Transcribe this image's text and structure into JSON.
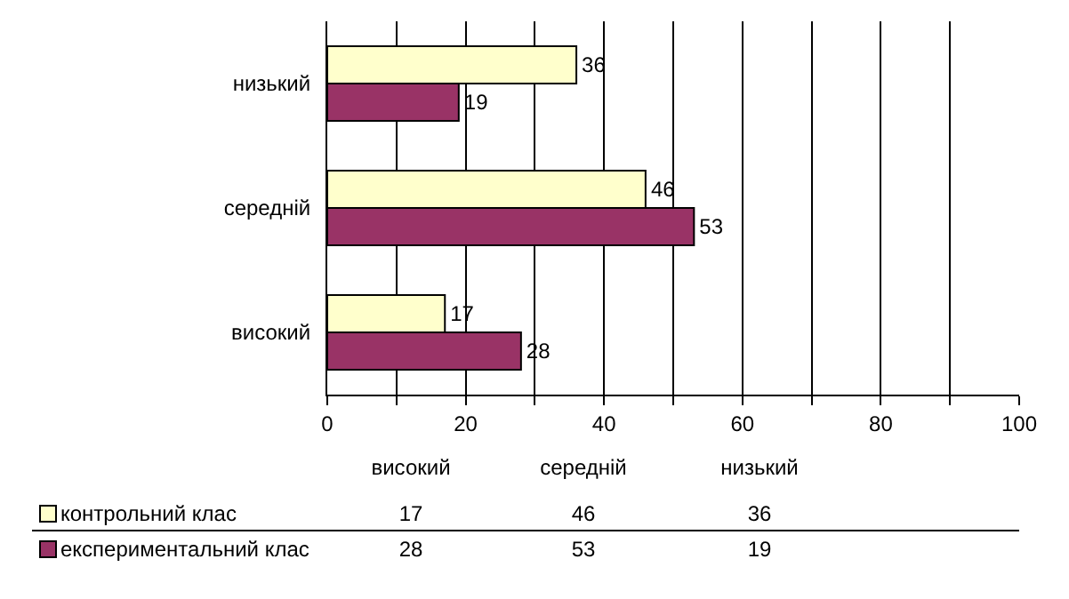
{
  "chart_data": [
    {
      "type": "bar",
      "orientation": "horizontal",
      "categories": [
        "низький",
        "середній",
        "високий"
      ],
      "series": [
        {
          "color": "#ffffcc",
          "values": [
            36,
            46,
            17
          ]
        },
        {
          "color": "#993366",
          "values": [
            19,
            53,
            28
          ]
        }
      ],
      "xlim": [
        0,
        100
      ],
      "xticks": [
        0,
        {
          "value": 10,
          "label": null
        },
        20,
        {
          "value": 30,
          "label": null
        },
        40,
        {
          "value": 50,
          "label": null
        },
        60,
        {
          "value": 70,
          "label": null
        },
        80,
        {
          "value": 90,
          "label": null
        },
        100
      ],
      "grid": "x",
      "data_labels": true
    },
    {
      "type": "other",
      "categories": [
        "високий",
        "середній",
        "низький"
      ],
      "series": [
        {
          "name": "контрольний клас",
          "color": "#ffffcc",
          "values": [
            17,
            46,
            36
          ]
        },
        {
          "name": "експериментальний клас",
          "color": "#993366",
          "values": [
            28,
            53,
            19
          ]
        }
      ],
      "data_labels": true,
      "legend": "left"
    }
  ]
}
